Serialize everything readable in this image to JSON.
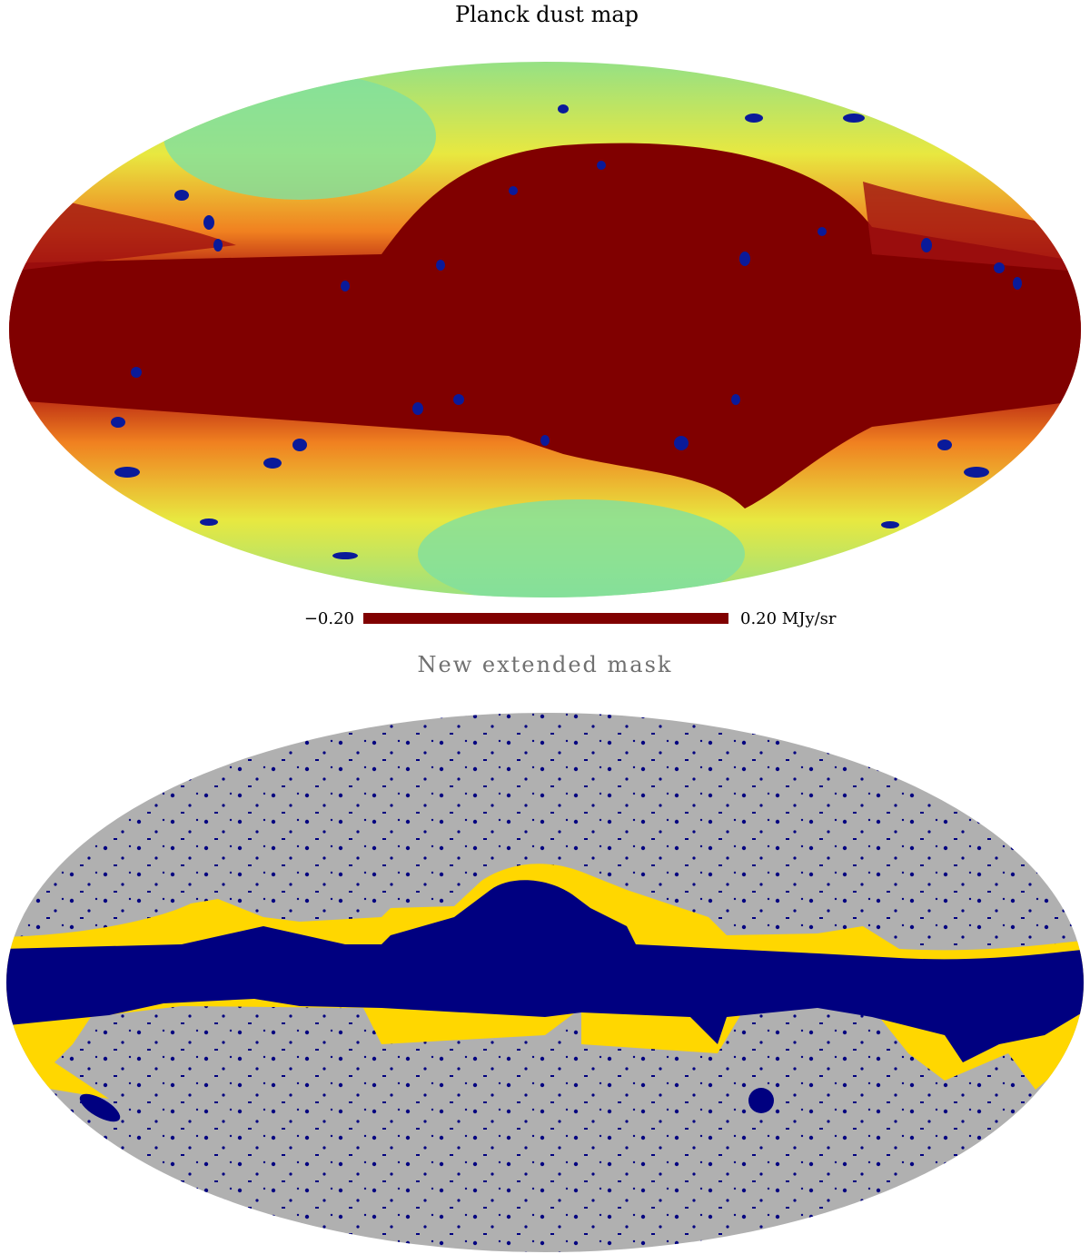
{
  "top": {
    "title": "Planck dust map",
    "colorbar": {
      "min_label": "−0.20",
      "max_label": "0.20 MJy/sr"
    }
  },
  "bottom": {
    "title": "New extended mask"
  }
}
